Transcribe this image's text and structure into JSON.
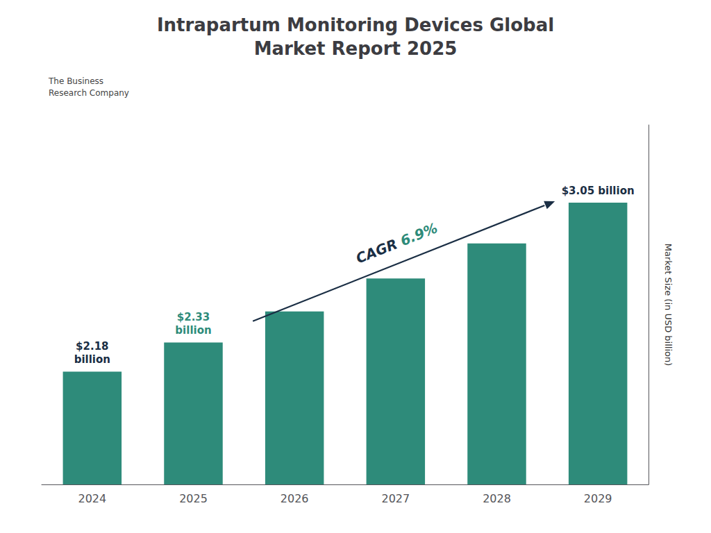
{
  "chart_data": {
    "type": "bar",
    "title": "Intrapartum Monitoring Devices Global\nMarket Report 2025",
    "categories": [
      "2024",
      "2025",
      "2026",
      "2027",
      "2028",
      "2029"
    ],
    "values": [
      2.18,
      2.33,
      2.49,
      2.66,
      2.84,
      3.05
    ],
    "color": "#2e8b7a",
    "ylabel": "Market Size (in USD billion)",
    "ylim": [
      1.6,
      3.45
    ],
    "yticks": [],
    "grid": false,
    "tick_labels": "x",
    "annotations": [
      {
        "text": "$2.18\nbillion",
        "category": "2024",
        "color": "#1a2e44"
      },
      {
        "text": "$2.33\nbillion",
        "category": "2025",
        "color": "#2e8b7a"
      },
      {
        "text": "$3.05 billion",
        "category": "2029",
        "color": "#1a2e44"
      },
      {
        "parts": [
          {
            "text": "CAGR ",
            "color": "#1a2e44"
          },
          {
            "text": "6.9%",
            "color": "#2e8b7a"
          }
        ],
        "arrow": {
          "from": "2026",
          "to": "2029",
          "color": "#1a2e44"
        }
      },
      {
        "text": "The Business\nResearch Company",
        "color": "#444444"
      }
    ]
  }
}
